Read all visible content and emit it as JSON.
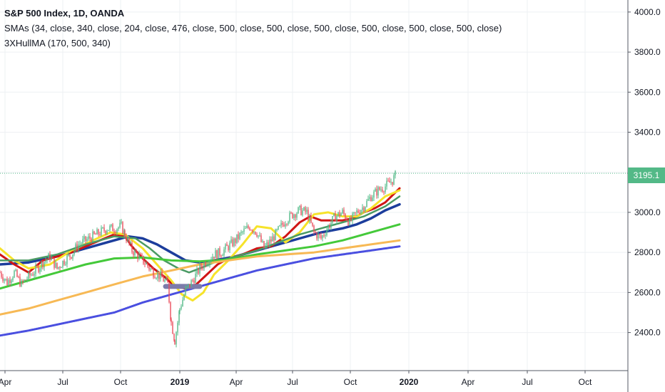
{
  "chart_data": {
    "type": "line",
    "title": "S&P 500 Index, 1D, OANDA",
    "legend": [
      "SMAs (34, close, 340, close, 204, close, 476, close, 500, close, 500, close, 500, close, 500, close, 500, close, 500, close)",
      "3XHullMA (170, 500, 340)"
    ],
    "last_price": "3195.1",
    "x_ticks": [
      "Apr",
      "Jul",
      "Oct",
      "2019",
      "Apr",
      "Jul",
      "Oct",
      "2020",
      "Apr",
      "Jul",
      "Oct"
    ],
    "y_ticks": [
      "2400.0",
      "2600.0",
      "2800.0",
      "3000.0",
      "3200.0",
      "3400.0",
      "3600.0",
      "3800.0",
      "4000.0"
    ],
    "ylim": [
      2210,
      4060
    ],
    "grid": true,
    "colors": {
      "candle_up": "#53b987",
      "candle_down": "#eb4d5c",
      "price_line": "#53b987",
      "blue_navy": "#1c3d9c",
      "red": "#d01515",
      "yellow": "#f6e32a",
      "green": "#44c93a",
      "dark_green": "#4a9a64",
      "orange": "#f7b955",
      "purple": "#4a4fe0",
      "grey_purple": "#7b7bab"
    },
    "price": [
      [
        0,
        2700
      ],
      [
        10,
        2650
      ],
      [
        20,
        2700
      ],
      [
        30,
        2640
      ],
      [
        40,
        2680
      ],
      [
        50,
        2710
      ],
      [
        60,
        2750
      ],
      [
        70,
        2780
      ],
      [
        80,
        2720
      ],
      [
        90,
        2760
      ],
      [
        100,
        2790
      ],
      [
        110,
        2840
      ],
      [
        120,
        2860
      ],
      [
        130,
        2880
      ],
      [
        140,
        2900
      ],
      [
        150,
        2920
      ],
      [
        160,
        2920
      ],
      [
        170,
        2930
      ],
      [
        175,
        2890
      ],
      [
        185,
        2810
      ],
      [
        195,
        2780
      ],
      [
        205,
        2740
      ],
      [
        215,
        2700
      ],
      [
        225,
        2680
      ],
      [
        235,
        2640
      ],
      [
        240,
        2450
      ],
      [
        245,
        2360
      ],
      [
        252,
        2520
      ],
      [
        260,
        2610
      ],
      [
        270,
        2660
      ],
      [
        280,
        2720
      ],
      [
        290,
        2760
      ],
      [
        300,
        2790
      ],
      [
        310,
        2800
      ],
      [
        320,
        2830
      ],
      [
        330,
        2860
      ],
      [
        340,
        2900
      ],
      [
        350,
        2930
      ],
      [
        360,
        2900
      ],
      [
        370,
        2820
      ],
      [
        380,
        2860
      ],
      [
        390,
        2910
      ],
      [
        400,
        2960
      ],
      [
        410,
        2990
      ],
      [
        420,
        3010
      ],
      [
        430,
        3000
      ],
      [
        440,
        2900
      ],
      [
        450,
        2870
      ],
      [
        460,
        2930
      ],
      [
        470,
        2980
      ],
      [
        480,
        3000
      ],
      [
        490,
        2950
      ],
      [
        500,
        3000
      ],
      [
        510,
        3030
      ],
      [
        520,
        3080
      ],
      [
        530,
        3110
      ],
      [
        540,
        3130
      ],
      [
        550,
        3160
      ],
      [
        556,
        3195
      ]
    ],
    "series": [
      {
        "color_key": "blue_navy",
        "width": 3.5,
        "points": [
          [
            0,
            2740
          ],
          [
            40,
            2750
          ],
          [
            80,
            2780
          ],
          [
            120,
            2820
          ],
          [
            150,
            2850
          ],
          [
            180,
            2880
          ],
          [
            200,
            2870
          ],
          [
            220,
            2840
          ],
          [
            240,
            2800
          ],
          [
            260,
            2760
          ],
          [
            280,
            2750
          ],
          [
            300,
            2760
          ],
          [
            330,
            2780
          ],
          [
            360,
            2810
          ],
          [
            390,
            2840
          ],
          [
            420,
            2870
          ],
          [
            450,
            2900
          ],
          [
            480,
            2920
          ],
          [
            500,
            2940
          ],
          [
            520,
            2970
          ],
          [
            540,
            3010
          ],
          [
            560,
            3040
          ]
        ]
      },
      {
        "color_key": "red",
        "width": 3,
        "points": [
          [
            0,
            2790
          ],
          [
            20,
            2740
          ],
          [
            40,
            2700
          ],
          [
            60,
            2760
          ],
          [
            80,
            2780
          ],
          [
            100,
            2800
          ],
          [
            120,
            2830
          ],
          [
            140,
            2860
          ],
          [
            160,
            2890
          ],
          [
            175,
            2880
          ],
          [
            185,
            2830
          ],
          [
            200,
            2770
          ],
          [
            215,
            2720
          ],
          [
            230,
            2680
          ],
          [
            245,
            2630
          ],
          [
            260,
            2620
          ],
          [
            275,
            2640
          ],
          [
            290,
            2690
          ],
          [
            305,
            2740
          ],
          [
            320,
            2770
          ],
          [
            340,
            2790
          ],
          [
            360,
            2820
          ],
          [
            380,
            2830
          ],
          [
            400,
            2880
          ],
          [
            420,
            2950
          ],
          [
            435,
            2980
          ],
          [
            450,
            2960
          ],
          [
            465,
            2960
          ],
          [
            480,
            2960
          ],
          [
            495,
            2970
          ],
          [
            510,
            3000
          ],
          [
            525,
            3020
          ],
          [
            540,
            3050
          ],
          [
            560,
            3120
          ]
        ]
      },
      {
        "color_key": "yellow",
        "width": 3,
        "points": [
          [
            0,
            2820
          ],
          [
            20,
            2760
          ],
          [
            40,
            2720
          ],
          [
            70,
            2740
          ],
          [
            100,
            2810
          ],
          [
            130,
            2860
          ],
          [
            155,
            2900
          ],
          [
            175,
            2890
          ],
          [
            200,
            2820
          ],
          [
            220,
            2740
          ],
          [
            240,
            2660
          ],
          [
            255,
            2590
          ],
          [
            270,
            2560
          ],
          [
            285,
            2600
          ],
          [
            300,
            2690
          ],
          [
            320,
            2760
          ],
          [
            340,
            2840
          ],
          [
            360,
            2930
          ],
          [
            380,
            2920
          ],
          [
            400,
            2850
          ],
          [
            420,
            2900
          ],
          [
            440,
            2990
          ],
          [
            460,
            3000
          ],
          [
            480,
            2980
          ],
          [
            500,
            2980
          ],
          [
            520,
            3020
          ],
          [
            540,
            3080
          ],
          [
            560,
            3110
          ]
        ]
      },
      {
        "color_key": "dark_green",
        "width": 2.5,
        "points": [
          [
            0,
            2760
          ],
          [
            40,
            2760
          ],
          [
            80,
            2790
          ],
          [
            120,
            2840
          ],
          [
            160,
            2880
          ],
          [
            190,
            2870
          ],
          [
            210,
            2820
          ],
          [
            230,
            2760
          ],
          [
            250,
            2720
          ],
          [
            265,
            2700
          ],
          [
            280,
            2720
          ],
          [
            300,
            2750
          ],
          [
            330,
            2780
          ],
          [
            360,
            2810
          ],
          [
            390,
            2850
          ],
          [
            420,
            2890
          ],
          [
            450,
            2920
          ],
          [
            480,
            2950
          ],
          [
            510,
            2980
          ],
          [
            540,
            3030
          ],
          [
            560,
            3080
          ]
        ]
      },
      {
        "color_key": "green",
        "width": 3,
        "points": [
          [
            0,
            2620
          ],
          [
            40,
            2660
          ],
          [
            80,
            2700
          ],
          [
            120,
            2740
          ],
          [
            160,
            2770
          ],
          [
            200,
            2775
          ],
          [
            240,
            2760
          ],
          [
            280,
            2755
          ],
          [
            320,
            2765
          ],
          [
            360,
            2790
          ],
          [
            400,
            2810
          ],
          [
            440,
            2830
          ],
          [
            480,
            2860
          ],
          [
            520,
            2900
          ],
          [
            560,
            2940
          ]
        ]
      },
      {
        "color_key": "orange",
        "width": 3,
        "points": [
          [
            0,
            2490
          ],
          [
            40,
            2520
          ],
          [
            80,
            2560
          ],
          [
            120,
            2600
          ],
          [
            160,
            2640
          ],
          [
            200,
            2680
          ],
          [
            240,
            2710
          ],
          [
            280,
            2740
          ],
          [
            320,
            2760
          ],
          [
            360,
            2780
          ],
          [
            400,
            2790
          ],
          [
            440,
            2800
          ],
          [
            480,
            2820
          ],
          [
            520,
            2840
          ],
          [
            560,
            2860
          ]
        ]
      },
      {
        "color_key": "purple",
        "width": 3,
        "dashed": true,
        "points": [
          [
            0,
            2385
          ],
          [
            40,
            2410
          ],
          [
            80,
            2440
          ],
          [
            120,
            2470
          ],
          [
            160,
            2500
          ],
          [
            200,
            2550
          ],
          [
            240,
            2590
          ],
          [
            280,
            2630
          ],
          [
            320,
            2670
          ],
          [
            360,
            2710
          ],
          [
            400,
            2740
          ],
          [
            440,
            2770
          ],
          [
            480,
            2790
          ],
          [
            520,
            2810
          ],
          [
            560,
            2830
          ]
        ]
      },
      {
        "color_key": "grey_purple",
        "width": 7,
        "points": [
          [
            232,
            2630
          ],
          [
            280,
            2630
          ]
        ]
      }
    ]
  }
}
